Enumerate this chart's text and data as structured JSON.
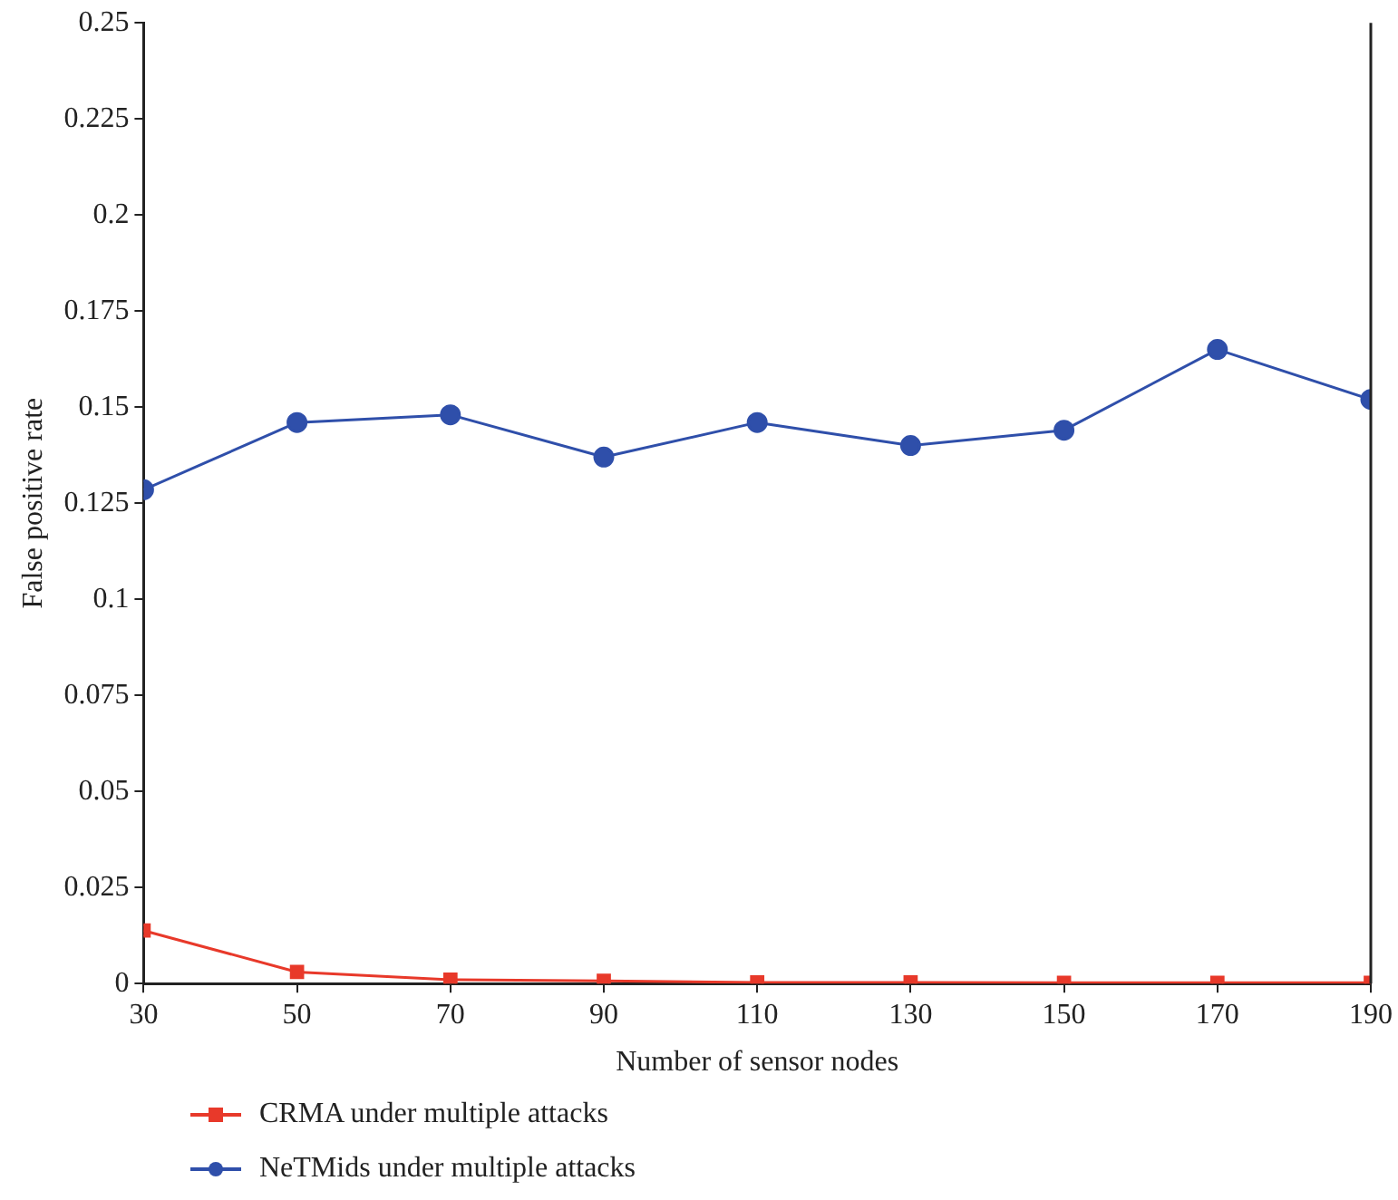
{
  "chart_data": {
    "type": "line",
    "xlabel": "Number of sensor nodes",
    "ylabel": "False positive rate",
    "x": [
      30,
      50,
      70,
      90,
      110,
      130,
      150,
      170,
      190
    ],
    "series": [
      {
        "name": "CRMA under multiple attacks",
        "color": "#e8392a",
        "marker": "square",
        "values": [
          0.0138,
          0.003,
          0.001,
          0.0007,
          0.0003,
          0.0003,
          0.0002,
          0.0002,
          0.0002
        ]
      },
      {
        "name": "NeTMids under multiple attacks",
        "color": "#2f4faa",
        "marker": "circle",
        "values": [
          0.1285,
          0.146,
          0.148,
          0.137,
          0.146,
          0.14,
          0.144,
          0.165,
          0.152
        ]
      }
    ],
    "xlim": [
      30,
      190
    ],
    "xticks": [
      30,
      50,
      70,
      90,
      110,
      130,
      150,
      170,
      190
    ],
    "ylim": [
      0,
      0.25
    ],
    "yticks": [
      0,
      0.025,
      0.05,
      0.075,
      0.1,
      0.125,
      0.15,
      0.175,
      0.2,
      0.225,
      0.25
    ],
    "grid": false,
    "legend": "bottom"
  }
}
